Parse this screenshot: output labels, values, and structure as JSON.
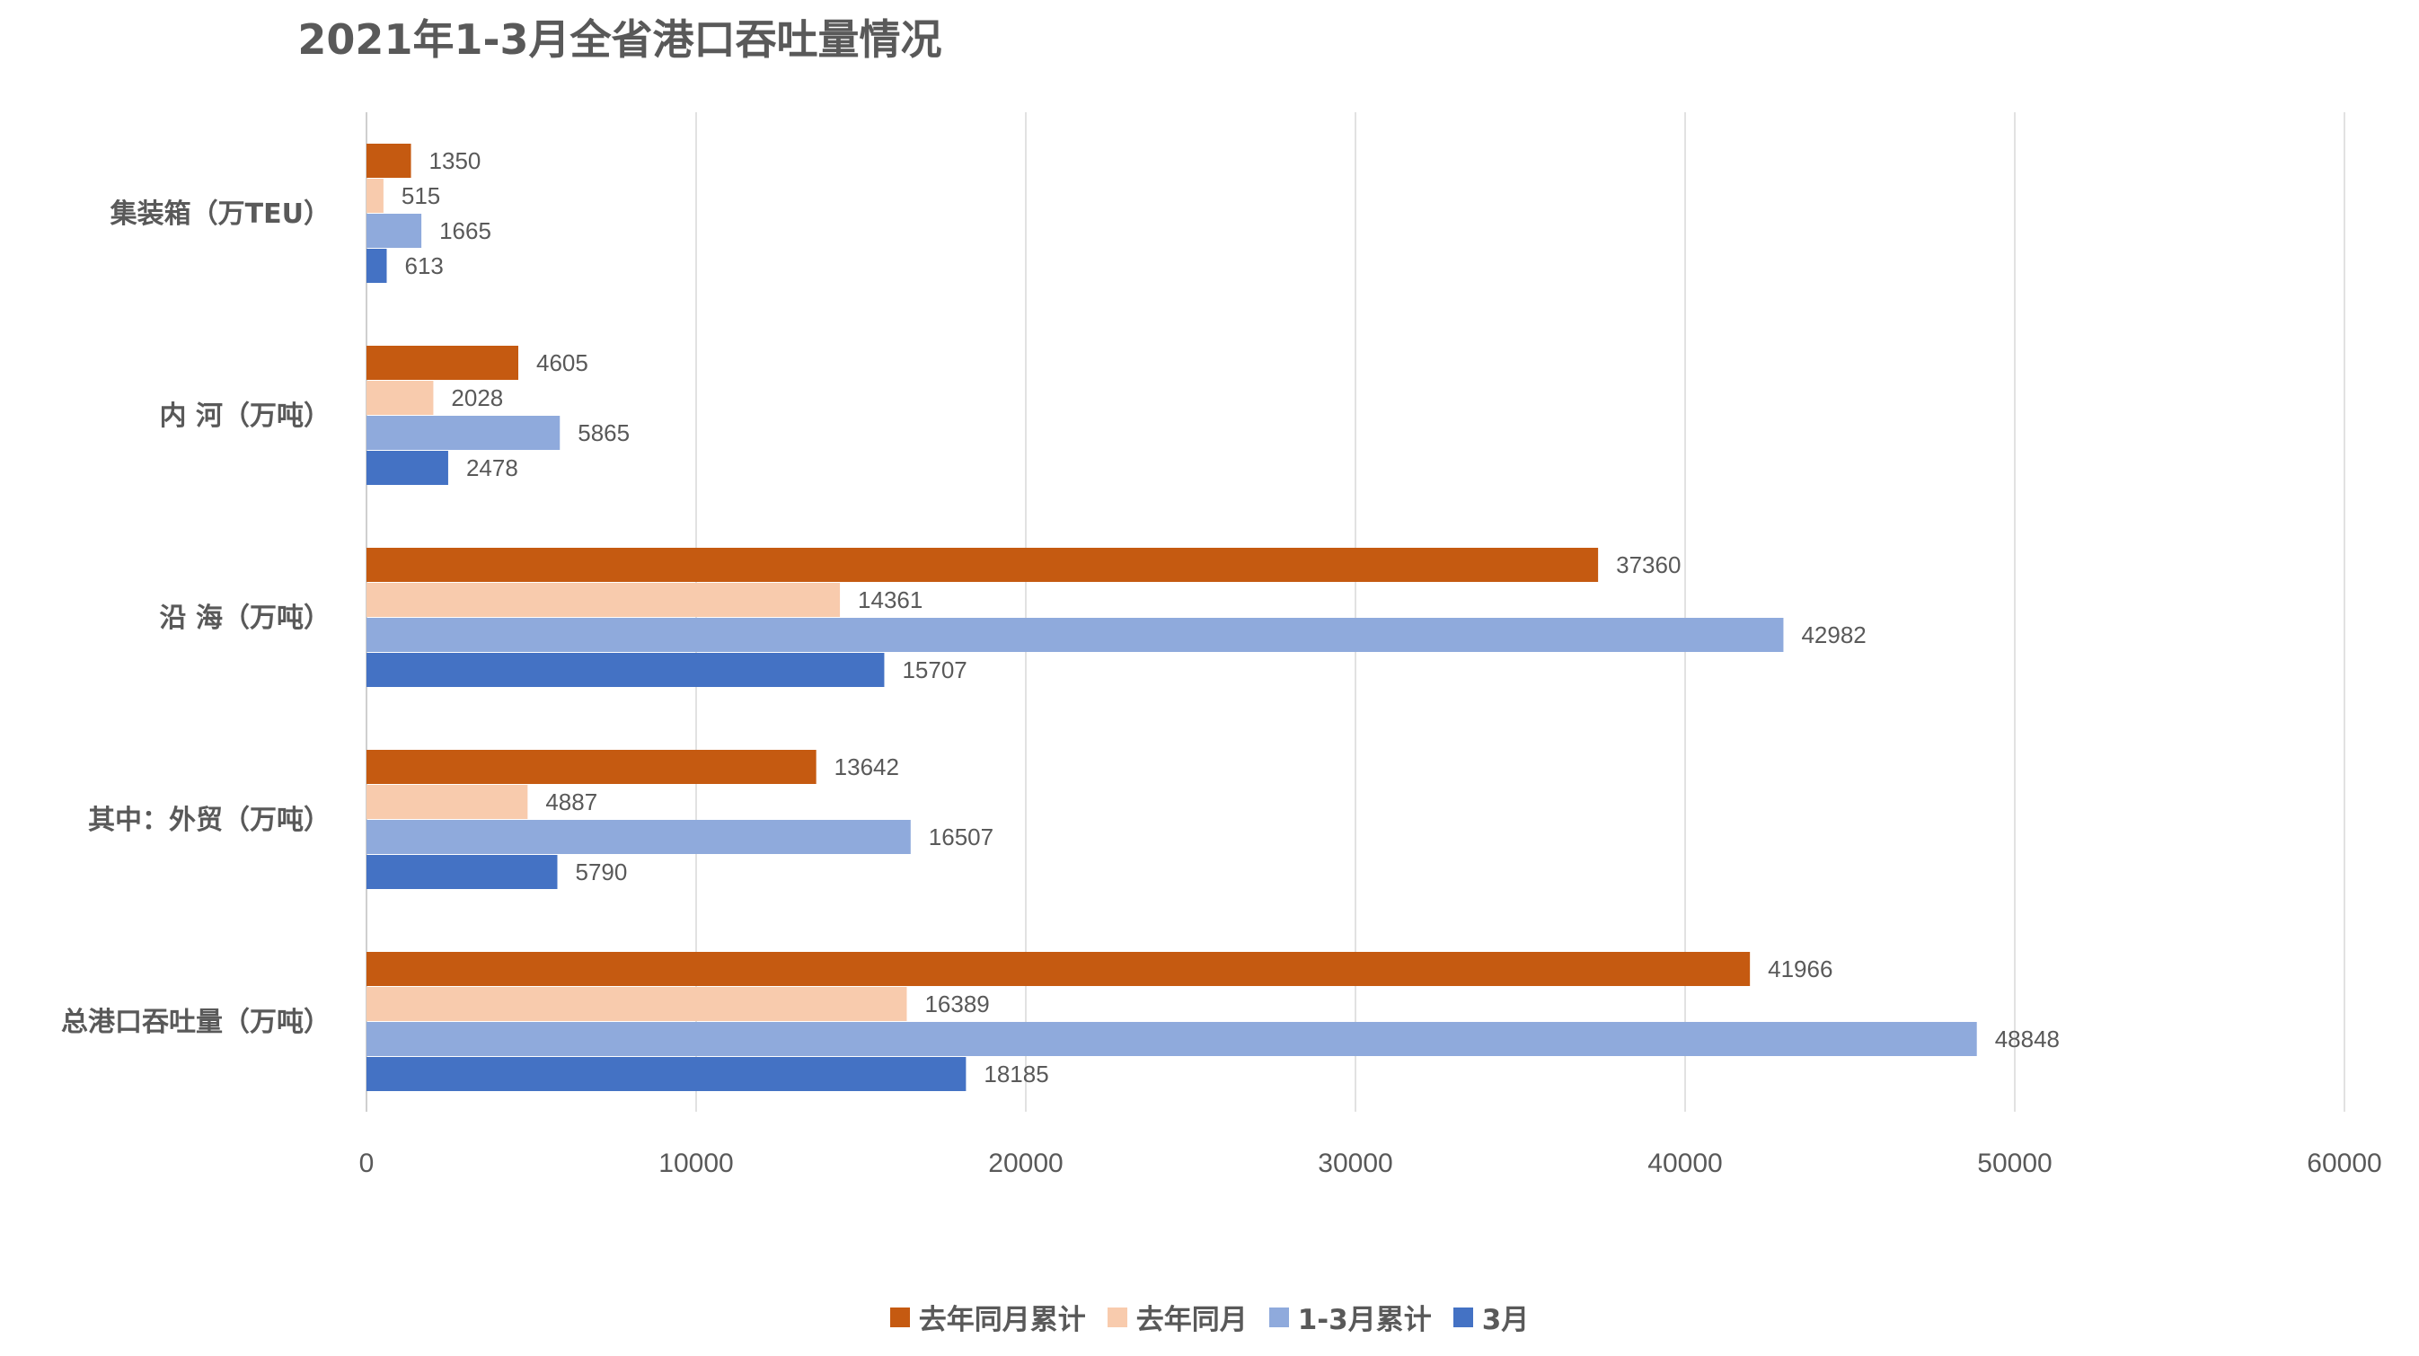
{
  "chart_data": {
    "type": "bar",
    "orientation": "horizontal",
    "title": "2021年1-3月全省港口吞吐量情况",
    "categories": [
      "集装箱（万TEU）",
      "内 河（万吨）",
      "沿 海（万吨）",
      "其中：外贸（万吨）",
      "总港口吞吐量（万吨）"
    ],
    "series": [
      {
        "name": "去年同月累计",
        "color": "#C55A11",
        "values": [
          1350,
          4605,
          37360,
          13642,
          41966
        ]
      },
      {
        "name": "去年同月",
        "color": "#F8CBAD",
        "values": [
          515,
          2028,
          14361,
          4887,
          16389
        ]
      },
      {
        "name": "1-3月累计",
        "color": "#8FAADC",
        "values": [
          1665,
          5865,
          42982,
          16507,
          48848
        ]
      },
      {
        "name": "3月",
        "color": "#4472C4",
        "values": [
          613,
          2478,
          15707,
          5790,
          18185
        ]
      }
    ],
    "xlim": [
      0,
      60000
    ],
    "xticks": [
      0,
      10000,
      20000,
      30000,
      40000,
      50000,
      60000
    ],
    "xtick_labels": [
      "0",
      "10000",
      "20000",
      "30000",
      "40000",
      "50000",
      "60000"
    ],
    "grid": "vertical",
    "data_labels": true,
    "legend_position": "bottom"
  }
}
